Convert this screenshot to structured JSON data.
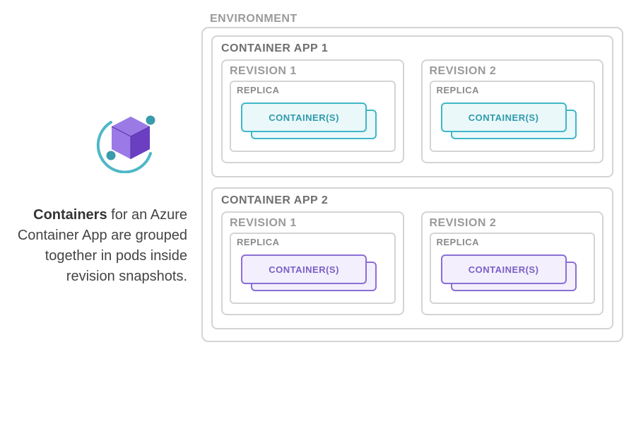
{
  "left": {
    "description_bold": "Containers",
    "description_rest": " for an Azure Container App are grouped together in pods inside revision snapshots."
  },
  "diagram": {
    "environment_label": "ENVIRONMENT",
    "colors": {
      "border_gray": "#d4d4d4",
      "label_gray": "#9a9a9a",
      "title_gray": "#6f6f6f"
    },
    "apps": [
      {
        "title": "CONTAINER APP 1",
        "accent": {
          "border": "#3fb7c7",
          "fill": "#eaf8fa",
          "text": "#2f9aab"
        },
        "revisions": [
          {
            "title": "REVISION 1",
            "replica_label": "REPLICA",
            "container_label": "CONTAINER(S)"
          },
          {
            "title": "REVISION 2",
            "replica_label": "REPLICA",
            "container_label": "CONTAINER(S)"
          }
        ]
      },
      {
        "title": "CONTAINER APP 2",
        "accent": {
          "border": "#8b6fd6",
          "fill": "#f3effc",
          "text": "#7a5fc7"
        },
        "revisions": [
          {
            "title": "REVISION 1",
            "replica_label": "REPLICA",
            "container_label": "CONTAINER(S)"
          },
          {
            "title": "REVISION 2",
            "replica_label": "REPLICA",
            "container_label": "CONTAINER(S)"
          }
        ]
      }
    ]
  },
  "icon": {
    "cube_light": "#9b7ae6",
    "cube_dark": "#6b3fc2",
    "ring": "#4fb7c7",
    "dot": "#3a9bab"
  }
}
